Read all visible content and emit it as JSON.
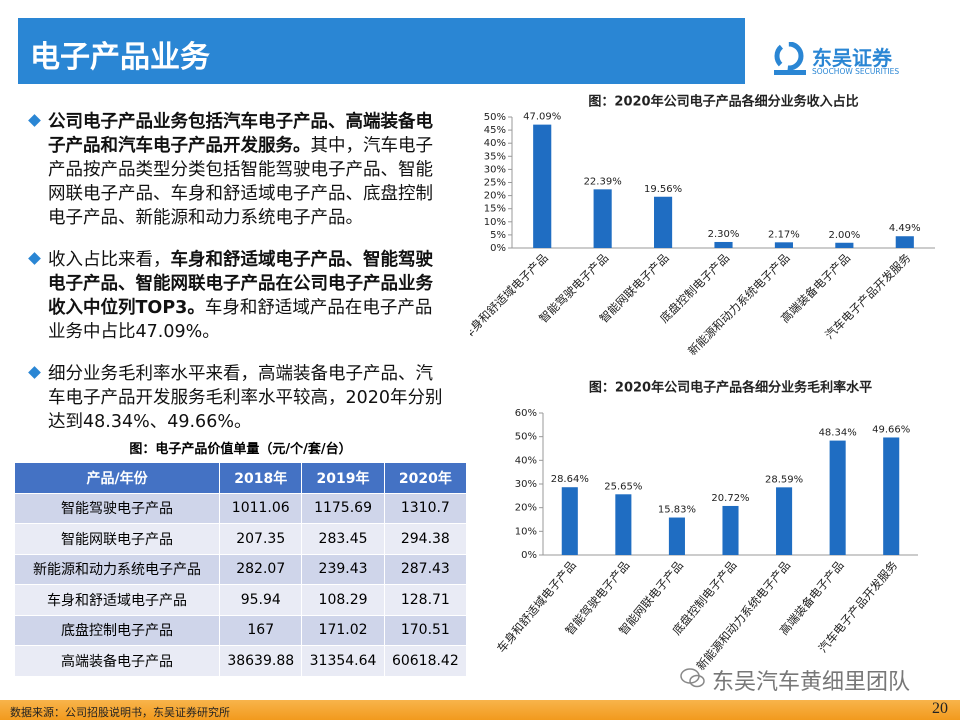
{
  "header": {
    "title": "电子产品业务",
    "logo_cn": "东吴证券",
    "logo_en": "SOOCHOW SECURITIES"
  },
  "bullets": [
    [
      {
        "text": "公司电子产品业务包括汽车电子产品、高端装备电子产品和汽车电子产品开发服务。",
        "bold": true
      },
      {
        "text": "其中，汽车电子产品按产品类型分类包括智能驾驶电子产品、智能网联电子产品、车身和舒适域电子产品、底盘控制电子产品、新能源和动力系统电子产品。",
        "bold": false
      }
    ],
    [
      {
        "text": "收入占比来看，",
        "bold": false
      },
      {
        "text": "车身和舒适域电子产品、智能驾驶电子产品、智能网联电子产品在公司电子产品业务收入中位列TOP3。",
        "bold": true
      },
      {
        "text": "车身和舒适域产品在电子产品业务中占比47.09%。",
        "bold": false
      }
    ],
    [
      {
        "text": "细分业务毛利率水平来看，高端装备电子产品、汽车电子产品开发服务毛利率水平较高，2020年分别达到48.34%、49.66%。",
        "bold": false
      }
    ]
  ],
  "table": {
    "title": "图：电子产品价值单量（元/个/套/台）",
    "columns": [
      "产品/年份",
      "2018年",
      "2019年",
      "2020年"
    ],
    "rows": [
      [
        "智能驾驶电子产品",
        1011.06,
        1175.69,
        1310.7
      ],
      [
        "智能网联电子产品",
        207.35,
        283.45,
        294.38
      ],
      [
        "新能源和动力系统电子产品",
        282.07,
        239.43,
        287.43
      ],
      [
        "车身和舒适域电子产品",
        95.94,
        108.29,
        128.71
      ],
      [
        "底盘控制电子产品",
        167,
        171.02,
        170.51
      ],
      [
        "高端装备电子产品",
        38639.88,
        31354.64,
        60618.42
      ]
    ]
  },
  "chart_data": [
    {
      "type": "bar",
      "title": "图：2020年公司电子产品各细分业务收入占比",
      "categories": [
        "车身和舒适域电子产品",
        "智能驾驶电子产品",
        "智能网联电子产品",
        "底盘控制电子产品",
        "新能源和动力系统电子产品",
        "高端装备电子产品",
        "汽车电子产品开发服务"
      ],
      "values": [
        47.09,
        22.39,
        19.56,
        2.3,
        2.17,
        2.0,
        4.49
      ],
      "value_labels": [
        "47.09%",
        "22.39%",
        "19.56%",
        "2.30%",
        "2.17%",
        "2.00%",
        "4.49%"
      ],
      "color": "#1f6dc2",
      "ylim": [
        0,
        50
      ],
      "yticks": [
        {
          "value": 0,
          "label": "0%"
        },
        {
          "value": 5,
          "label": "5%"
        },
        {
          "value": 10,
          "label": "10%"
        },
        {
          "value": 15,
          "label": "15%"
        },
        {
          "value": 20,
          "label": "20%"
        },
        {
          "value": 25,
          "label": "25%"
        },
        {
          "value": 30,
          "label": "30%"
        },
        {
          "value": 35,
          "label": "35%"
        },
        {
          "value": 40,
          "label": "40%"
        },
        {
          "value": 45,
          "label": "45%"
        },
        {
          "value": 50,
          "label": "50%"
        }
      ],
      "grid": false
    },
    {
      "type": "bar",
      "title": "图：2020年公司电子产品各细分业务毛利率水平",
      "categories": [
        "车身和舒适域电子产品",
        "智能驾驶电子产品",
        "智能网联电子产品",
        "底盘控制电子产品",
        "新能源和动力系统电子产品",
        "高端装备电子产品",
        "汽车电子产品开发服务"
      ],
      "values": [
        28.64,
        25.65,
        15.83,
        20.72,
        28.59,
        48.34,
        49.66
      ],
      "value_labels": [
        "28.64%",
        "25.65%",
        "15.83%",
        "20.72%",
        "28.59%",
        "48.34%",
        "49.66%"
      ],
      "color": "#1f6dc2",
      "ylim": [
        0,
        60
      ],
      "yticks": [
        {
          "value": 0,
          "label": "0%"
        },
        {
          "value": 10,
          "label": "10%"
        },
        {
          "value": 20,
          "label": "20%"
        },
        {
          "value": 30,
          "label": "30%"
        },
        {
          "value": 40,
          "label": "40%"
        },
        {
          "value": 50,
          "label": "50%"
        },
        {
          "value": 60,
          "label": "60%"
        }
      ],
      "grid": false
    }
  ],
  "footer": {
    "source": "数据来源：公司招股说明书，东吴证券研究所",
    "page_number": 20,
    "watermark": "东吴汽车黄细里团队"
  }
}
